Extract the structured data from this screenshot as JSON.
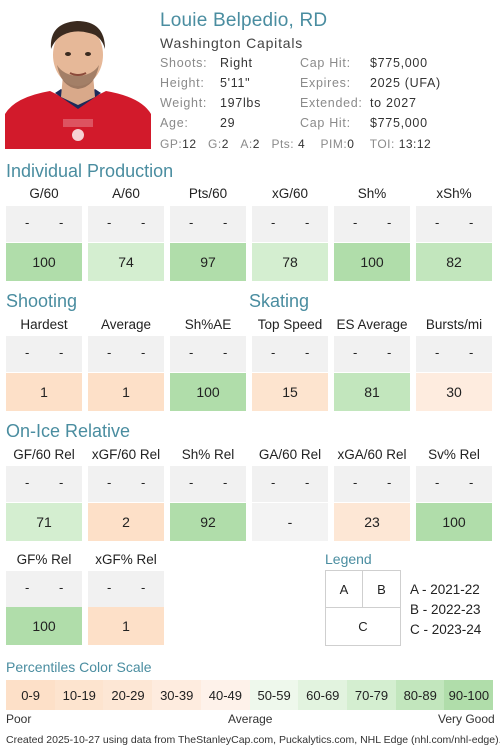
{
  "player": {
    "name": "Louie Belpedio, RD",
    "team": "Washington Capitals"
  },
  "info": {
    "shoots_label": "Shoots:",
    "shoots": "Right",
    "height_label": "Height:",
    "height": "5'11\"",
    "weight_label": "Weight:",
    "weight": "197lbs",
    "age_label": "Age:",
    "age": "29",
    "caphit_label": "Cap Hit:",
    "caphit": "$775,000",
    "expires_label": "Expires:",
    "expires": "2025 (UFA)",
    "extended_label": "Extended:",
    "extended": "to 2027",
    "caphit2_label": "Cap Hit:",
    "caphit2": "$775,000"
  },
  "statline": {
    "gp_label": "GP:",
    "gp": "12",
    "g_label": "G:",
    "g": "2",
    "a_label": "A:",
    "a": "2",
    "pts_label": "Pts:",
    "pts": "4",
    "pim_label": "PIM:",
    "pim": "0",
    "toi_label": "TOI:",
    "toi": "13:12"
  },
  "colors": {
    "accent": "#4a8da0",
    "p0": "#fde0c8",
    "p1": "#fde4cf",
    "p2": "#fde7d5",
    "p3": "#feecdf",
    "p4": "#fef2ea",
    "p5": "#eef8ec",
    "p6": "#e2f3df",
    "p7": "#d4eed0",
    "p8": "#c2e6bd",
    "p9": "#b0ddaa"
  },
  "dash": "-",
  "sections": {
    "production": {
      "title": "Individual Production",
      "cols": [
        {
          "label": "G/60",
          "pct": "100",
          "level": 9
        },
        {
          "label": "A/60",
          "pct": "74",
          "level": 7
        },
        {
          "label": "Pts/60",
          "pct": "97",
          "level": 9
        },
        {
          "label": "xG/60",
          "pct": "78",
          "level": 7
        },
        {
          "label": "Sh%",
          "pct": "100",
          "level": 9
        },
        {
          "label": "xSh%",
          "pct": "82",
          "level": 8
        }
      ]
    },
    "shooting": {
      "title": "Shooting",
      "cols": [
        {
          "label": "Hardest",
          "pct": "1",
          "level": 0
        },
        {
          "label": "Average",
          "pct": "1",
          "level": 0
        },
        {
          "label": "Sh%AE",
          "pct": "100",
          "level": 9
        }
      ]
    },
    "skating": {
      "title": "Skating",
      "cols": [
        {
          "label": "Top Speed",
          "pct": "15",
          "level": 1
        },
        {
          "label": "ES Average",
          "pct": "81",
          "level": 8
        },
        {
          "label": "Bursts/mi",
          "pct": "30",
          "level": 3
        }
      ]
    },
    "onice": {
      "title": "On-Ice Relative",
      "cols": [
        {
          "label": "GF/60 Rel",
          "pct": "71",
          "level": 7
        },
        {
          "label": "xGF/60 Rel",
          "pct": "2",
          "level": 0
        },
        {
          "label": "Sh% Rel",
          "pct": "92",
          "level": 9
        },
        {
          "label": "GA/60 Rel",
          "pct": "-",
          "level": -1
        },
        {
          "label": "xGA/60 Rel",
          "pct": "23",
          "level": 2
        },
        {
          "label": "Sv% Rel",
          "pct": "100",
          "level": 9
        }
      ],
      "cols2": [
        {
          "label": "GF% Rel",
          "pct": "100",
          "level": 9
        },
        {
          "label": "xGF% Rel",
          "pct": "1",
          "level": 0
        }
      ]
    }
  },
  "legend": {
    "title": "Legend",
    "a": "A",
    "b": "B",
    "c": "C",
    "a_key": "A - 2021-22",
    "b_key": "B - 2022-23",
    "c_key": "C - 2023-24"
  },
  "scale": {
    "title": "Percentiles Color Scale",
    "buckets": [
      "0-9",
      "10-19",
      "20-29",
      "30-39",
      "40-49",
      "50-59",
      "60-69",
      "70-79",
      "80-89",
      "90-100"
    ],
    "poor": "Poor",
    "average": "Average",
    "very_good": "Very Good"
  },
  "footer": "Created 2025-10-27 using data from TheStanleyCap.com, Puckalytics.com, NHL Edge (nhl.com/nhl-edge)."
}
